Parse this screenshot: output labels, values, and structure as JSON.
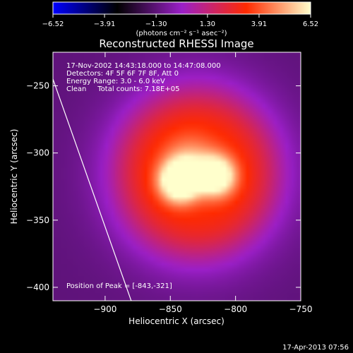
{
  "chart_data": {
    "type": "heatmap",
    "title": "Reconstructed RHESSI Image",
    "xlabel": "Heliocentric X (arcsec)",
    "ylabel": "Heliocentric Y (arcsec)",
    "xlim": [
      -940,
      -750
    ],
    "ylim": [
      -410,
      -225
    ],
    "x_ticks": [
      -900,
      -850,
      -800,
      -750
    ],
    "y_ticks": [
      -250,
      -300,
      -350,
      -400
    ],
    "x_tick_labels": [
      "−900",
      "−850",
      "−800",
      "−750"
    ],
    "y_tick_labels": [
      "−250",
      "−300",
      "−350",
      "−400"
    ],
    "colorbar": {
      "range": [
        -6.52,
        6.52
      ],
      "ticks": [
        -6.52,
        -3.91,
        -1.3,
        1.3,
        3.91,
        6.52
      ],
      "tick_labels": [
        "−6.52",
        "−3.91",
        "−1.30",
        "1.30",
        "3.91",
        "6.52"
      ],
      "unit_label": "(photons cm⁻² s⁻¹ asec⁻²)",
      "colors": [
        "#0000ff",
        "#000000",
        "#9b1fc8",
        "#ff2a00",
        "#ffffcc"
      ]
    },
    "annotations": [
      "17-Nov-2002 14:43:18.000 to 14:47:08.000",
      "Detectors: 4F 5F 6F 7F 8F, Att 0",
      "Energy Range: 3.0 - 6.0 keV",
      "Clean     Total counts: 7.18E+05"
    ],
    "peak_label": "Position of Peak = [-843,-321]",
    "peak": [
      -843,
      -321
    ],
    "limb_line": [
      [
        -940,
        -245
      ],
      [
        -880,
        -410
      ]
    ],
    "sources": [
      {
        "x": -843,
        "y": -321,
        "amplitude": 6.5,
        "sigma": 10
      },
      {
        "x": -815,
        "y": -317,
        "amplitude": 5.4,
        "sigma": 10
      },
      {
        "x": -835,
        "y": -308,
        "amplitude": 2.2,
        "sigma": 14
      }
    ],
    "halo": {
      "x": -830,
      "y": -315,
      "radius": 62,
      "level": 3.2,
      "background": -1.3
    }
  },
  "footer_timestamp": "17-Apr-2013 07:56"
}
